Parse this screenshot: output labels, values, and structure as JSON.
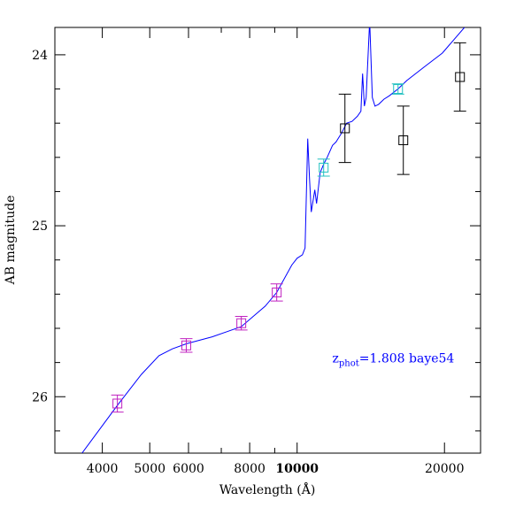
{
  "chart_data": {
    "type": "sed",
    "xlabel": "Wavelength (Å)",
    "ylabel": "AB magnitude",
    "xlog": true,
    "y_inverted": true,
    "xlim": [
      3200,
      23700
    ],
    "ylim": [
      23.84,
      26.33
    ],
    "xticks": [
      4000,
      5000,
      6000,
      8000,
      10000,
      20000
    ],
    "xminor": [
      7000,
      9000
    ],
    "yticks": [
      24,
      25,
      26
    ],
    "yminor": [
      24.2,
      24.4,
      24.6,
      24.8,
      25.2,
      25.4,
      25.6,
      25.8,
      26.2
    ],
    "annotation": {
      "text": "z",
      "sub": "phot",
      "rest": "=1.808 baye54",
      "color": "#0000ff",
      "x": 11800,
      "y": 25.8
    },
    "sed": {
      "color": "#0000ff",
      "x": [
        3636,
        4295,
        4805,
        5222,
        5559,
        5943,
        6706,
        7691,
        8608,
        9087,
        9754,
        10000,
        10252,
        10382,
        10512,
        10600,
        10689,
        10868,
        10959,
        11143,
        11330,
        11521,
        11812,
        12010,
        12312,
        12624,
        12943,
        13274,
        13497,
        13609,
        13722,
        13836,
        14070,
        14247,
        14425,
        14670,
        15040,
        15422,
        16075,
        16762,
        18213,
        19800,
        21970
      ],
      "values": [
        26.33,
        26.05,
        25.87,
        25.76,
        25.72,
        25.69,
        25.65,
        25.59,
        25.47,
        25.39,
        25.23,
        25.19,
        25.17,
        25.13,
        24.49,
        24.72,
        24.92,
        24.79,
        24.87,
        24.69,
        24.64,
        24.6,
        24.53,
        24.51,
        24.46,
        24.4,
        24.39,
        24.36,
        24.33,
        24.11,
        24.3,
        24.25,
        23.8,
        24.25,
        24.3,
        24.29,
        24.26,
        24.24,
        24.2,
        24.15,
        24.07,
        23.99,
        23.84
      ]
    },
    "points": [
      {
        "color": "#c020c0",
        "x": [
          4294,
          5937,
          7691,
          9085
        ],
        "values": [
          26.04,
          25.7,
          25.57,
          25.39
        ],
        "errors": [
          0.05,
          0.04,
          0.04,
          0.05
        ]
      },
      {
        "color": "#20c0c0",
        "x": [
          11330,
          16075
        ],
        "values": [
          24.66,
          24.2
        ],
        "errors": [
          0.05,
          0.03
        ]
      },
      {
        "color": "#000000",
        "x": [
          12522,
          16480,
          21511
        ],
        "values": [
          24.43,
          24.5,
          24.13
        ],
        "errors": [
          0.2,
          0.2,
          0.2
        ]
      }
    ]
  }
}
